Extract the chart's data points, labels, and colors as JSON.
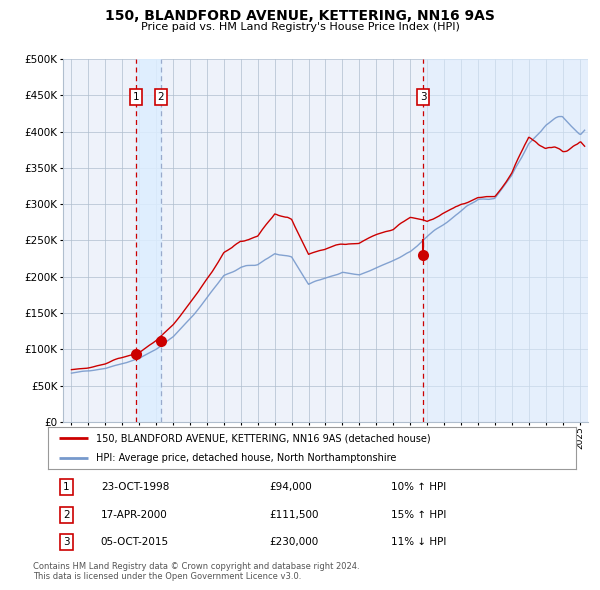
{
  "title": "150, BLANDFORD AVENUE, KETTERING, NN16 9AS",
  "subtitle": "Price paid vs. HM Land Registry's House Price Index (HPI)",
  "legend_line1": "150, BLANDFORD AVENUE, KETTERING, NN16 9AS (detached house)",
  "legend_line2": "HPI: Average price, detached house, North Northamptonshire",
  "footer1": "Contains HM Land Registry data © Crown copyright and database right 2024.",
  "footer2": "This data is licensed under the Open Government Licence v3.0.",
  "sales": [
    {
      "num": 1,
      "date": "23-OCT-1998",
      "price": 94000,
      "year": 1998.81,
      "hpi_pct": "10% ↑ HPI"
    },
    {
      "num": 2,
      "date": "17-APR-2000",
      "price": 111500,
      "year": 2000.29,
      "hpi_pct": "15% ↑ HPI"
    },
    {
      "num": 3,
      "date": "05-OCT-2015",
      "price": 230000,
      "year": 2015.76,
      "hpi_pct": "11% ↓ HPI"
    }
  ],
  "red_line_color": "#cc0000",
  "blue_line_color": "#7799cc",
  "sale_marker_color": "#cc0000",
  "vline_red_color": "#cc0000",
  "shade_color": "#ddeeff",
  "background_color": "#eef2fa",
  "grid_color": "#b0bece",
  "label_box_color": "#cc0000",
  "ylim": [
    0,
    500000
  ],
  "yticks": [
    0,
    50000,
    100000,
    150000,
    200000,
    250000,
    300000,
    350000,
    400000,
    450000,
    500000
  ],
  "xlim_start": 1994.5,
  "xlim_end": 2025.5,
  "hpi_control_years": [
    1995,
    1996,
    1997,
    1998,
    1999,
    2000,
    2001,
    2002,
    2003,
    2004,
    2005,
    2006,
    2007,
    2008,
    2009,
    2010,
    2011,
    2012,
    2013,
    2014,
    2015,
    2016,
    2017,
    2018,
    2019,
    2020,
    2021,
    2022,
    2023,
    2024,
    2025
  ],
  "hpi_control_vals": [
    67000,
    70000,
    74000,
    80000,
    88000,
    100000,
    118000,
    145000,
    175000,
    205000,
    215000,
    218000,
    235000,
    230000,
    192000,
    200000,
    208000,
    205000,
    215000,
    225000,
    235000,
    255000,
    272000,
    290000,
    305000,
    310000,
    340000,
    390000,
    415000,
    425000,
    410000
  ],
  "red_control_years": [
    1995,
    1996,
    1997,
    1998,
    1999,
    2000,
    2001,
    2002,
    2003,
    2004,
    2005,
    2006,
    2007,
    2008,
    2009,
    2010,
    2011,
    2012,
    2013,
    2014,
    2015,
    2016,
    2017,
    2018,
    2019,
    2020,
    2021,
    2022,
    2023,
    2024,
    2025
  ],
  "red_control_vals": [
    72000,
    76000,
    80000,
    87000,
    94000,
    111500,
    132000,
    162000,
    195000,
    228000,
    240000,
    245000,
    272000,
    265000,
    220000,
    228000,
    232000,
    232000,
    240000,
    245000,
    260000,
    255000,
    270000,
    285000,
    295000,
    298000,
    325000,
    368000,
    355000,
    355000,
    370000
  ]
}
